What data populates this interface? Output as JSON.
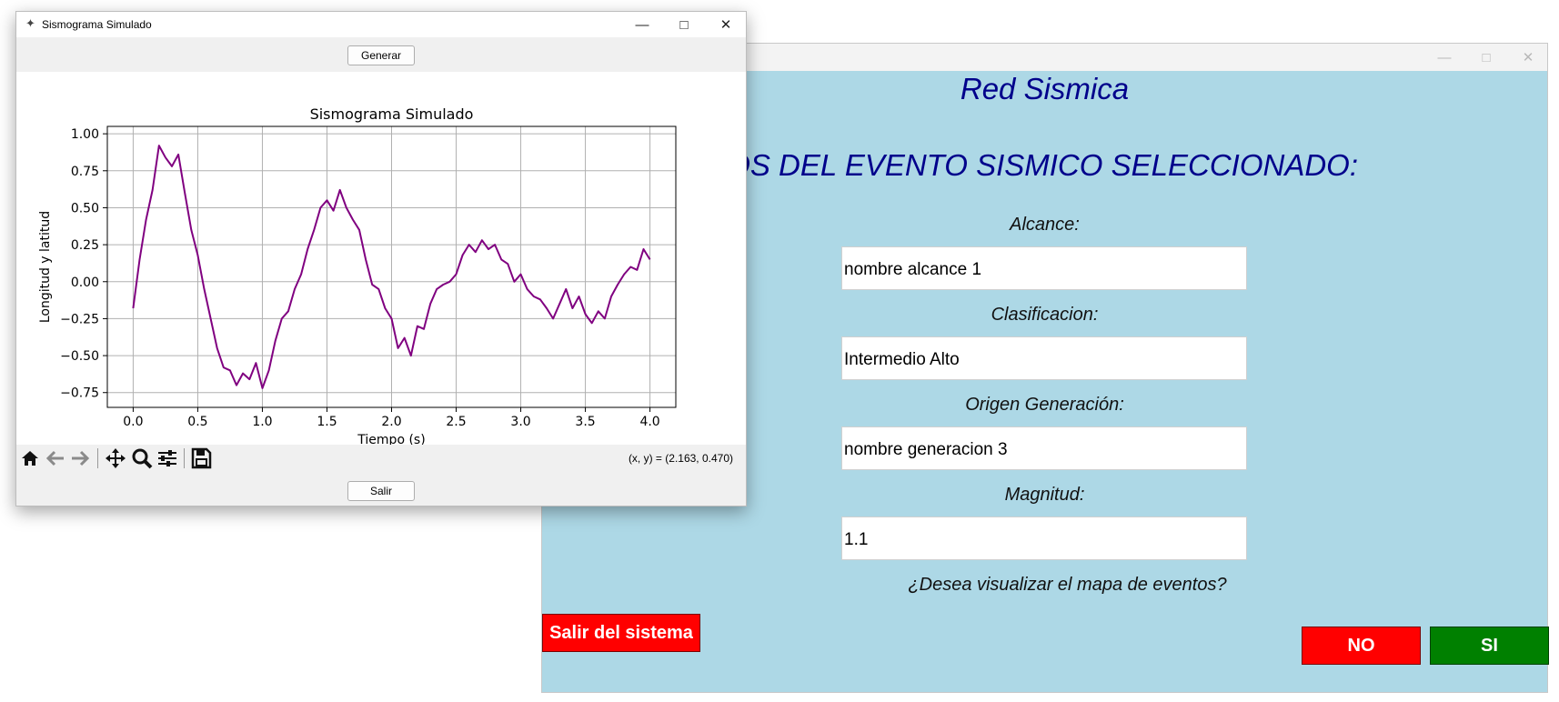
{
  "red_window": {
    "heading": "Red Sismica",
    "subheading": "TOS DEL EVENTO SISMICO SELECCIONADO:",
    "fields": [
      {
        "label": "Alcance:",
        "value": "nombre alcance 1"
      },
      {
        "label": "Clasificacion:",
        "value": "Intermedio Alto"
      },
      {
        "label": "Origen Generación:",
        "value": "nombre generacion 3"
      },
      {
        "label": "Magnitud:",
        "value": "1.1"
      }
    ],
    "question": "¿Desea visualizar el mapa de eventos?",
    "exit_label": "Salir del sistema",
    "no_label": "NO",
    "yes_label": "SI",
    "colors": {
      "background": "#add8e6",
      "heading": "#00008b",
      "no": "#ff0000",
      "yes": "#008000"
    }
  },
  "sis_window": {
    "title": "Sismograma Simulado",
    "generate_label": "Generar",
    "exit_label": "Salir",
    "coords": "(x, y) = (2.163, 0.470)",
    "toolbar_icons": [
      "home-icon",
      "back-arrow-icon",
      "forward-arrow-icon",
      "pan-icon",
      "zoom-icon",
      "configure-subplots-icon",
      "save-icon"
    ]
  },
  "chart_data": {
    "type": "line",
    "title": "Sismograma Simulado",
    "xlabel": "Tiempo (s)",
    "ylabel": "Longitud y latitud",
    "xlim": [
      -0.2,
      4.2
    ],
    "ylim": [
      -0.85,
      1.05
    ],
    "xticks": [
      0.0,
      0.5,
      1.0,
      1.5,
      2.0,
      2.5,
      3.0,
      3.5,
      4.0
    ],
    "xtick_labels": [
      "0.0",
      "0.5",
      "1.0",
      "1.5",
      "2.0",
      "2.5",
      "3.0",
      "3.5",
      "4.0"
    ],
    "yticks": [
      1.0,
      0.75,
      0.5,
      0.25,
      0.0,
      -0.25,
      -0.5,
      -0.75
    ],
    "ytick_labels": [
      "1.00",
      "0.75",
      "0.50",
      "0.25",
      "0.00",
      "−0.25",
      "−0.50",
      "−0.75"
    ],
    "grid": true,
    "color": "#800080",
    "series": [
      {
        "x": [
          0.0,
          0.05,
          0.1,
          0.15,
          0.2,
          0.25,
          0.3,
          0.35,
          0.4,
          0.45,
          0.5,
          0.55,
          0.6,
          0.65,
          0.7,
          0.75,
          0.8,
          0.85,
          0.9,
          0.95,
          1.0,
          1.05,
          1.1,
          1.15,
          1.2,
          1.25,
          1.3,
          1.35,
          1.4,
          1.45,
          1.5,
          1.55,
          1.6,
          1.65,
          1.7,
          1.75,
          1.8,
          1.85,
          1.9,
          1.95,
          2.0,
          2.05,
          2.1,
          2.15,
          2.2,
          2.25,
          2.3,
          2.35,
          2.4,
          2.45,
          2.5,
          2.55,
          2.6,
          2.65,
          2.7,
          2.75,
          2.8,
          2.85,
          2.9,
          2.95,
          3.0,
          3.05,
          3.1,
          3.15,
          3.2,
          3.25,
          3.3,
          3.35,
          3.4,
          3.45,
          3.5,
          3.55,
          3.6,
          3.65,
          3.7,
          3.75,
          3.8,
          3.85,
          3.9,
          3.95,
          4.0
        ],
        "y": [
          -0.18,
          0.15,
          0.42,
          0.62,
          0.92,
          0.84,
          0.78,
          0.86,
          0.6,
          0.35,
          0.18,
          -0.05,
          -0.25,
          -0.45,
          -0.58,
          -0.6,
          -0.7,
          -0.62,
          -0.66,
          -0.55,
          -0.72,
          -0.6,
          -0.4,
          -0.25,
          -0.2,
          -0.05,
          0.05,
          0.22,
          0.35,
          0.5,
          0.55,
          0.48,
          0.62,
          0.5,
          0.42,
          0.35,
          0.15,
          -0.02,
          -0.05,
          -0.18,
          -0.25,
          -0.45,
          -0.38,
          -0.5,
          -0.3,
          -0.32,
          -0.15,
          -0.05,
          -0.02,
          0.0,
          0.05,
          0.18,
          0.25,
          0.2,
          0.28,
          0.22,
          0.25,
          0.15,
          0.12,
          0.0,
          0.05,
          -0.05,
          -0.1,
          -0.12,
          -0.18,
          -0.25,
          -0.15,
          -0.05,
          -0.18,
          -0.1,
          -0.22,
          -0.28,
          -0.2,
          -0.25,
          -0.1,
          -0.02,
          0.05,
          0.1,
          0.08,
          0.22,
          0.15
        ]
      }
    ]
  }
}
